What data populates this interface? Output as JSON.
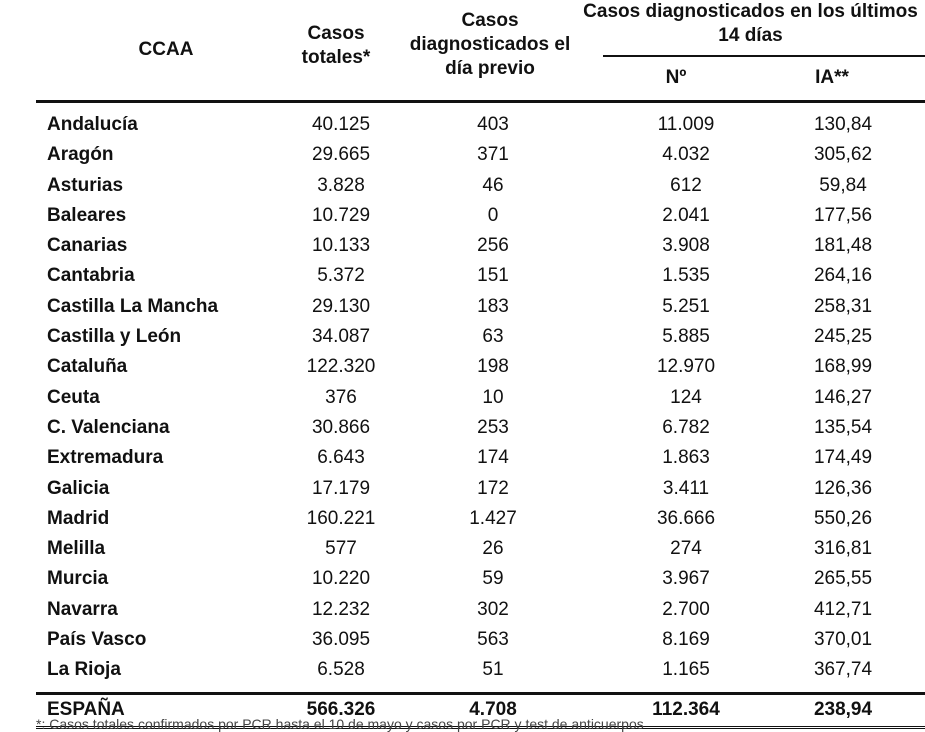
{
  "headers": {
    "ccaa": "CCAA",
    "casos_totales": "Casos totales*",
    "casos_dia_previo": "Casos diagnosticados el día previo",
    "ultimos_14": "Casos diagnosticados en los últimos 14 días",
    "n": "Nº",
    "ia": "IA**"
  },
  "rows": [
    {
      "ccaa": "Andalucía",
      "total": "40.125",
      "previo": "403",
      "n": "11.009",
      "ia": "130,84"
    },
    {
      "ccaa": "Aragón",
      "total": "29.665",
      "previo": "371",
      "n": "4.032",
      "ia": "305,62"
    },
    {
      "ccaa": "Asturias",
      "total": "3.828",
      "previo": "46",
      "n": "612",
      "ia": "59,84"
    },
    {
      "ccaa": "Baleares",
      "total": "10.729",
      "previo": "0",
      "n": "2.041",
      "ia": "177,56"
    },
    {
      "ccaa": "Canarias",
      "total": "10.133",
      "previo": "256",
      "n": "3.908",
      "ia": "181,48"
    },
    {
      "ccaa": "Cantabria",
      "total": "5.372",
      "previo": "151",
      "n": "1.535",
      "ia": "264,16"
    },
    {
      "ccaa": "Castilla La Mancha",
      "total": "29.130",
      "previo": "183",
      "n": "5.251",
      "ia": "258,31"
    },
    {
      "ccaa": "Castilla y León",
      "total": "34.087",
      "previo": "63",
      "n": "5.885",
      "ia": "245,25"
    },
    {
      "ccaa": "Cataluña",
      "total": "122.320",
      "previo": "198",
      "n": "12.970",
      "ia": "168,99"
    },
    {
      "ccaa": "Ceuta",
      "total": "376",
      "previo": "10",
      "n": "124",
      "ia": "146,27"
    },
    {
      "ccaa": "C. Valenciana",
      "total": "30.866",
      "previo": "253",
      "n": "6.782",
      "ia": "135,54"
    },
    {
      "ccaa": "Extremadura",
      "total": "6.643",
      "previo": "174",
      "n": "1.863",
      "ia": "174,49"
    },
    {
      "ccaa": "Galicia",
      "total": "17.179",
      "previo": "172",
      "n": "3.411",
      "ia": "126,36"
    },
    {
      "ccaa": "Madrid",
      "total": "160.221",
      "previo": "1.427",
      "n": "36.666",
      "ia": "550,26"
    },
    {
      "ccaa": "Melilla",
      "total": "577",
      "previo": "26",
      "n": "274",
      "ia": "316,81"
    },
    {
      "ccaa": "Murcia",
      "total": "10.220",
      "previo": "59",
      "n": "3.967",
      "ia": "265,55"
    },
    {
      "ccaa": "Navarra",
      "total": "12.232",
      "previo": "302",
      "n": "2.700",
      "ia": "412,71"
    },
    {
      "ccaa": "País Vasco",
      "total": "36.095",
      "previo": "563",
      "n": "8.169",
      "ia": "370,01"
    },
    {
      "ccaa": "La Rioja",
      "total": "6.528",
      "previo": "51",
      "n": "1.165",
      "ia": "367,74"
    }
  ],
  "total_row": {
    "ccaa": "ESPAÑA",
    "total": "566.326",
    "previo": "4.708",
    "n": "112.364",
    "ia": "238,94"
  },
  "footnote": "*: Casos totales confirmados por PCR hasta el 10 de mayo y casos por PCR y test de anticuerpos"
}
